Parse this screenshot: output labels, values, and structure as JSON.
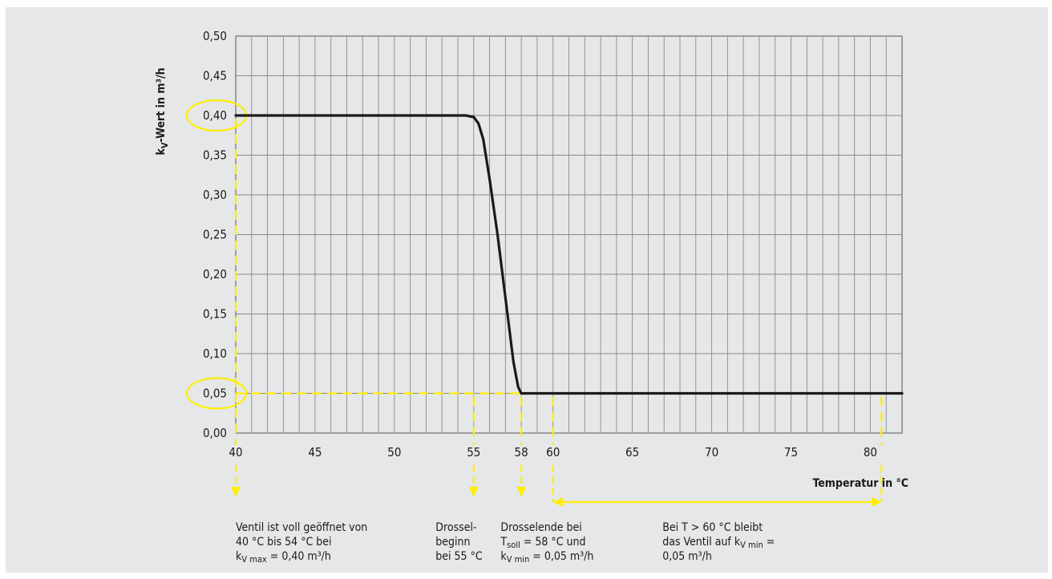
{
  "chart_data": {
    "type": "line",
    "title": "",
    "xlabel": "Temperatur in °C",
    "ylabel_main": "k",
    "ylabel_sub": "V",
    "ylabel_rest": "-Wert in m³/h",
    "xlim": [
      40,
      82
    ],
    "ylim": [
      0,
      0.5
    ],
    "grid": true,
    "x_tick_values": [
      40,
      45,
      50,
      55,
      58,
      60,
      65,
      70,
      75,
      80
    ],
    "x_tick_labels": [
      "40",
      "45",
      "50",
      "55",
      "58",
      "60",
      "65",
      "70",
      "75",
      "80"
    ],
    "y_tick_values": [
      0,
      0.05,
      0.1,
      0.15,
      0.2,
      0.25,
      0.3,
      0.35,
      0.4,
      0.45,
      0.5
    ],
    "y_tick_labels": [
      "0,00",
      "0,05",
      "0,10",
      "0,15",
      "0,20",
      "0,25",
      "0,30",
      "0,35",
      "0,40",
      "0,45",
      "0,50"
    ],
    "series": [
      {
        "color": "#1a1a1a",
        "x": [
          40,
          54.5,
          55,
          55.3,
          55.6,
          56,
          56.5,
          57,
          57.5,
          57.8,
          58,
          82
        ],
        "y": [
          0.4,
          0.4,
          0.398,
          0.39,
          0.37,
          0.32,
          0.25,
          0.17,
          0.09,
          0.058,
          0.05,
          0.05
        ]
      }
    ],
    "highlight_color": "#ffee00",
    "highlights": [
      {
        "kind": "circle",
        "y": 0.4
      },
      {
        "kind": "circle",
        "y": 0.05
      },
      {
        "kind": "hline",
        "y": 0.05,
        "x_from": 40,
        "x_to": 58
      },
      {
        "kind": "vline",
        "x": 40,
        "y_to": 0.4
      },
      {
        "kind": "vline",
        "x": 55,
        "y_to": 0.05
      },
      {
        "kind": "vline",
        "x": 58,
        "y_to": 0.05
      },
      {
        "kind": "vline",
        "x": 60,
        "y_to": 0.05
      },
      {
        "kind": "vline",
        "x": 80.7,
        "y_to": 0.05
      }
    ],
    "down_arrows_x": [
      40,
      55,
      58
    ],
    "range_arrow": {
      "x_from": 60,
      "x_to": 80.7
    },
    "annotations": [
      {
        "x": 40,
        "lines": [
          [
            {
              "t": "Ventil ist voll geöffnet von"
            }
          ],
          [
            {
              "t": "40 °C bis 54 °C bei"
            }
          ],
          [
            {
              "t": "k"
            },
            {
              "t": "V max",
              "sub": true
            },
            {
              "t": " = 0,40 m³/h"
            }
          ]
        ]
      },
      {
        "x": 52.6,
        "lines": [
          [
            {
              "t": "Drossel-"
            }
          ],
          [
            {
              "t": "beginn"
            }
          ],
          [
            {
              "t": "bei 55 °C"
            }
          ]
        ]
      },
      {
        "x": 56.7,
        "lines": [
          [
            {
              "t": "Drosselende bei"
            }
          ],
          [
            {
              "t": "T"
            },
            {
              "t": "soll",
              "sub": true
            },
            {
              "t": " = 58 °C und"
            }
          ],
          [
            {
              "t": "k"
            },
            {
              "t": "V min",
              "sub": true
            },
            {
              "t": " = 0,05 m³/h"
            }
          ]
        ]
      },
      {
        "x": 66.9,
        "lines": [
          [
            {
              "t": "Bei T > 60 °C bleibt"
            }
          ],
          [
            {
              "t": "das Ventil auf k"
            },
            {
              "t": "V min",
              "sub": true
            },
            {
              "t": " ="
            }
          ],
          [
            {
              "t": "0,05 m³/h"
            }
          ]
        ]
      }
    ]
  }
}
